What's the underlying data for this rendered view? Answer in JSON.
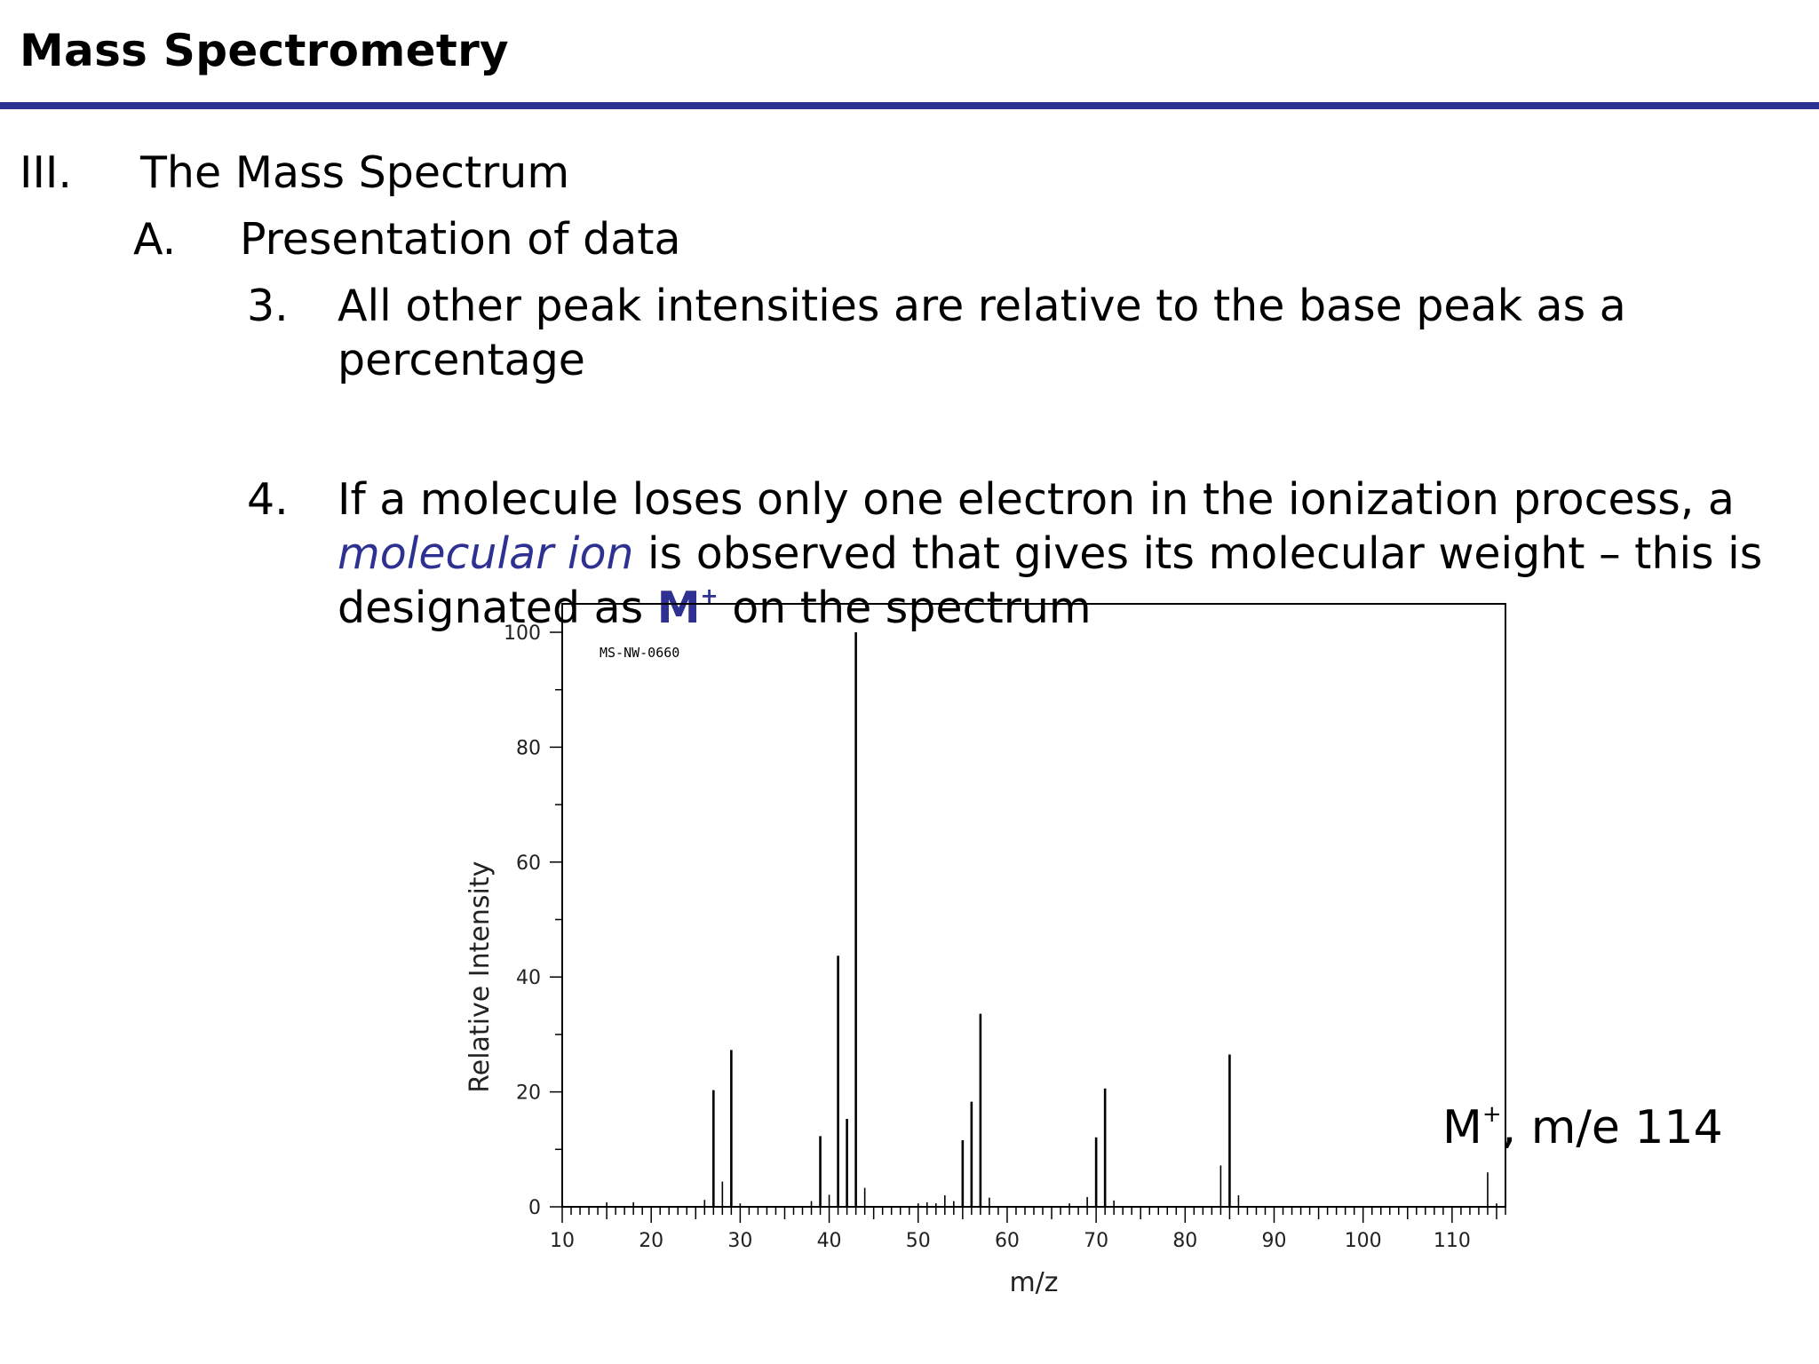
{
  "header": {
    "title": "Mass Spectrometry"
  },
  "outline": {
    "section": {
      "numeral": "III.",
      "text": "The Mass Spectrum"
    },
    "subsection": {
      "letter": "A.",
      "text": "Presentation of data"
    },
    "point3": {
      "number": "3.",
      "line1": "All other peak intensities are relative to the base peak as a",
      "line2": "percentage"
    },
    "point4": {
      "number": "4.",
      "line1": "If a molecule loses only one electron in the ionization process, a",
      "line2_em": "molecular ion",
      "line2_rest": " is observed that gives its molecular weight – this is",
      "line3_a": "designated  as ",
      "line3_m": "M",
      "line3_sup": "+",
      "line3_b": " on the spectrum"
    }
  },
  "annotation": {
    "m": "M",
    "sup": "+",
    "rest": ", m/e 114"
  },
  "colors": {
    "accent": "#2e3192",
    "text": "#000000"
  },
  "chart_data": {
    "type": "bar",
    "id_label": "MS-NW-0660",
    "xlabel": "m/z",
    "ylabel": "Relative Intensity",
    "xlim": [
      10,
      116
    ],
    "ylim": [
      0,
      100
    ],
    "xticks": [
      10,
      20,
      30,
      40,
      50,
      60,
      70,
      80,
      90,
      100,
      110
    ],
    "yticks": [
      0,
      20,
      40,
      60,
      80,
      100
    ],
    "peaks": [
      {
        "x": 15,
        "y": 0.8
      },
      {
        "x": 18,
        "y": 0.8
      },
      {
        "x": 26,
        "y": 1.2
      },
      {
        "x": 27,
        "y": 20.3
      },
      {
        "x": 28,
        "y": 4.4
      },
      {
        "x": 29,
        "y": 27.3
      },
      {
        "x": 30,
        "y": 0.6
      },
      {
        "x": 38,
        "y": 1.0
      },
      {
        "x": 39,
        "y": 12.3
      },
      {
        "x": 40,
        "y": 2.1
      },
      {
        "x": 41,
        "y": 43.7
      },
      {
        "x": 42,
        "y": 15.3
      },
      {
        "x": 43,
        "y": 100
      },
      {
        "x": 44,
        "y": 3.3
      },
      {
        "x": 50,
        "y": 0.6
      },
      {
        "x": 51,
        "y": 0.8
      },
      {
        "x": 52,
        "y": 0.6
      },
      {
        "x": 53,
        "y": 2.0
      },
      {
        "x": 54,
        "y": 1.0
      },
      {
        "x": 55,
        "y": 11.6
      },
      {
        "x": 56,
        "y": 18.3
      },
      {
        "x": 57,
        "y": 33.6
      },
      {
        "x": 58,
        "y": 1.6
      },
      {
        "x": 67,
        "y": 0.6
      },
      {
        "x": 69,
        "y": 1.7
      },
      {
        "x": 70,
        "y": 12.1
      },
      {
        "x": 71,
        "y": 20.6
      },
      {
        "x": 72,
        "y": 1.1
      },
      {
        "x": 84,
        "y": 7.2
      },
      {
        "x": 85,
        "y": 26.5
      },
      {
        "x": 86,
        "y": 2.0
      },
      {
        "x": 114,
        "y": 6.0
      },
      {
        "x": 115,
        "y": 0.6
      }
    ]
  }
}
